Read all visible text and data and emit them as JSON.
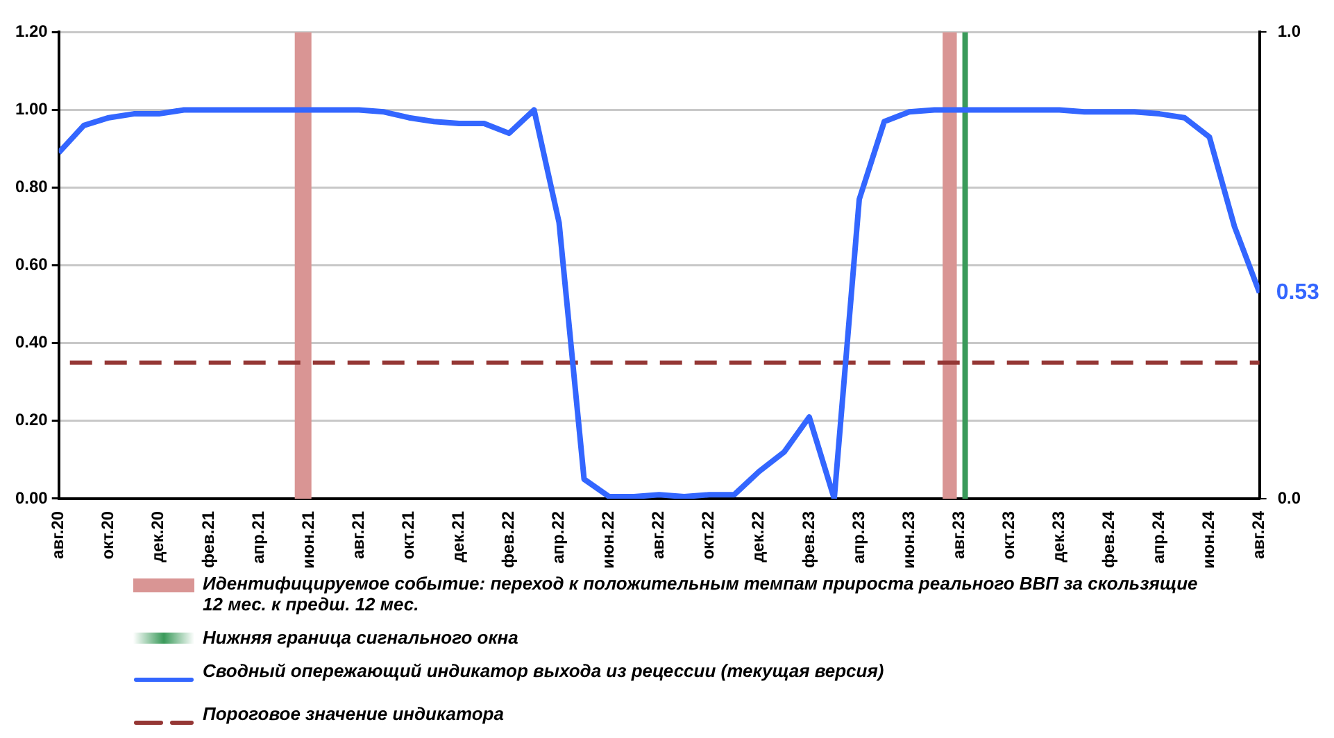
{
  "chart_data": {
    "type": "line",
    "x": [
      "2020-08",
      "2020-09",
      "2020-10",
      "2020-11",
      "2020-12",
      "2021-01",
      "2021-02",
      "2021-03",
      "2021-04",
      "2021-05",
      "2021-06",
      "2021-07",
      "2021-08",
      "2021-09",
      "2021-10",
      "2021-11",
      "2021-12",
      "2022-01",
      "2022-02",
      "2022-03",
      "2022-04",
      "2022-05",
      "2022-06",
      "2022-07",
      "2022-08",
      "2022-09",
      "2022-10",
      "2022-11",
      "2022-12",
      "2023-01",
      "2023-02",
      "2023-03",
      "2023-04",
      "2023-05",
      "2023-06",
      "2023-07",
      "2023-08",
      "2023-09",
      "2023-10",
      "2023-11",
      "2023-12",
      "2024-01",
      "2024-02",
      "2024-03",
      "2024-04",
      "2024-05",
      "2024-06",
      "2024-07",
      "2024-08"
    ],
    "series": [
      {
        "name": "Сводный опережающий  индикатор выхода из рецессии  (текущая версия)",
        "color": "#3366ff",
        "values": [
          0.89,
          0.96,
          0.98,
          0.99,
          0.99,
          1.0,
          1.0,
          1.0,
          1.0,
          1.0,
          1.0,
          1.0,
          1.0,
          0.995,
          0.98,
          0.97,
          0.965,
          0.965,
          0.94,
          1.0,
          0.71,
          0.05,
          0.005,
          0.005,
          0.01,
          0.005,
          0.01,
          0.01,
          0.07,
          0.12,
          0.21,
          0.0,
          0.77,
          0.97,
          0.995,
          1.0,
          1.0,
          1.0,
          1.0,
          1.0,
          1.0,
          0.995,
          0.995,
          0.995,
          0.99,
          0.98,
          0.93,
          0.7,
          0.53
        ]
      }
    ],
    "xlim": [
      "2020-08",
      "2024-08"
    ],
    "xticks": [
      {
        "value": "2020-08",
        "label": "авг.20"
      },
      {
        "value": "2020-10",
        "label": "окт.20"
      },
      {
        "value": "2020-12",
        "label": "дек.20"
      },
      {
        "value": "2021-02",
        "label": "фев.21"
      },
      {
        "value": "2021-04",
        "label": "апр.21"
      },
      {
        "value": "2021-06",
        "label": "июн.21"
      },
      {
        "value": "2021-08",
        "label": "авг.21"
      },
      {
        "value": "2021-10",
        "label": "окт.21"
      },
      {
        "value": "2021-12",
        "label": "дек.21"
      },
      {
        "value": "2022-02",
        "label": "фев.22"
      },
      {
        "value": "2022-04",
        "label": "апр.22"
      },
      {
        "value": "2022-06",
        "label": "июн.22"
      },
      {
        "value": "2022-08",
        "label": "авг.22"
      },
      {
        "value": "2022-10",
        "label": "окт.22"
      },
      {
        "value": "2022-12",
        "label": "дек.22"
      },
      {
        "value": "2023-02",
        "label": "фев.23"
      },
      {
        "value": "2023-04",
        "label": "апр.23"
      },
      {
        "value": "2023-06",
        "label": "июн.23"
      },
      {
        "value": "2023-08",
        "label": "авг.23"
      },
      {
        "value": "2023-10",
        "label": "окт.23"
      },
      {
        "value": "2023-12",
        "label": "дек.23"
      },
      {
        "value": "2024-02",
        "label": "фев.24"
      },
      {
        "value": "2024-04",
        "label": "апр.24"
      },
      {
        "value": "2024-06",
        "label": "июн.24"
      },
      {
        "value": "2024-08",
        "label": "авг.24"
      }
    ],
    "ylim": [
      0,
      1.2
    ],
    "yticks": [
      {
        "value": 0,
        "label": "0.00"
      },
      {
        "value": 0.2,
        "label": "0.20"
      },
      {
        "value": 0.4,
        "label": "0.40"
      },
      {
        "value": 0.6,
        "label": "0.60"
      },
      {
        "value": 0.8,
        "label": "0.80"
      },
      {
        "value": 1.0,
        "label": "1.00"
      },
      {
        "value": 1.2,
        "label": "1.20"
      }
    ],
    "y2lim": [
      0,
      1
    ],
    "y2ticks": [
      {
        "value": 0,
        "label": "0.0"
      },
      {
        "value": 1,
        "label": "1.0"
      }
    ],
    "bands": [
      {
        "axis": "x",
        "from": "2021-05-14",
        "to": "2021-06-04",
        "color": "#d99594",
        "label": "Идентифицируемое событие: переход к положительным темпам прироста реального ВВП за скользящие  12 мес. к предш. 12 мес."
      },
      {
        "axis": "x",
        "from": "2023-07-11",
        "to": "2023-07-28",
        "color": "#d99594"
      }
    ],
    "ref_lines": [
      {
        "axis": "x",
        "value": "2023-08-08",
        "color": "#3a9a5a",
        "label": "Нижняя граница сигнального окна"
      },
      {
        "axis": "y",
        "value": 0.35,
        "color": "#953735",
        "line_style": "dashed",
        "label": "Пороговое значение индикатора"
      }
    ],
    "annotations": [
      {
        "text": "0.53",
        "x": "2024-08",
        "y": 0.53
      }
    ],
    "grid": "y",
    "legend": "bottom",
    "marker": "none",
    "line_style": "solid"
  }
}
